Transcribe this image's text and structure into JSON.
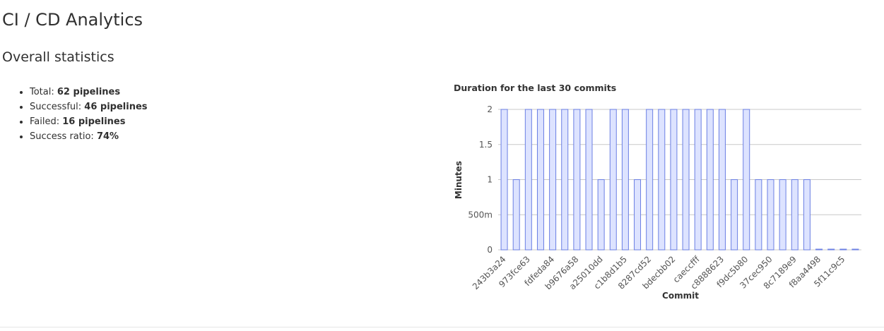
{
  "header": {
    "title": "CI / CD Analytics"
  },
  "section": {
    "title": "Overall statistics",
    "stats": [
      {
        "label": "Total:",
        "value": "62 pipelines"
      },
      {
        "label": "Successful:",
        "value": "46 pipelines"
      },
      {
        "label": "Failed:",
        "value": "16 pipelines"
      },
      {
        "label": "Success ratio:",
        "value": "74%"
      }
    ]
  },
  "chart_data": {
    "type": "bar",
    "title": "Duration for the last 30 commits",
    "x_label": "Commit",
    "y_label": "Minutes",
    "categories": [
      "243b3a24",
      null,
      "973fce63",
      null,
      "fdfeda84",
      null,
      "b9676a58",
      null,
      "a25010dd",
      null,
      "c1b8d1b5",
      null,
      "8287cd52",
      null,
      "bdecbb02",
      null,
      "caeccfff",
      null,
      "c8888623",
      null,
      "f9dc5b80",
      null,
      "37cec950",
      null,
      "8c7189e9",
      null,
      "f8aa4498",
      null,
      "5f11c9c5",
      null
    ],
    "values": [
      2,
      1,
      2,
      2,
      2,
      2,
      2,
      2,
      1,
      2,
      2,
      1,
      2,
      2,
      2,
      2,
      2,
      2,
      2,
      1,
      2,
      1,
      1,
      1,
      1,
      1,
      0.01,
      0.01,
      0.01,
      0.01
    ],
    "color": "#dde3ff",
    "stroke": "#6b7fe3",
    "ylim": [
      0,
      2
    ],
    "yticks": [
      0,
      {
        "value": 0.5,
        "label": "500m"
      },
      1,
      1.5,
      2
    ],
    "grid": true
  }
}
